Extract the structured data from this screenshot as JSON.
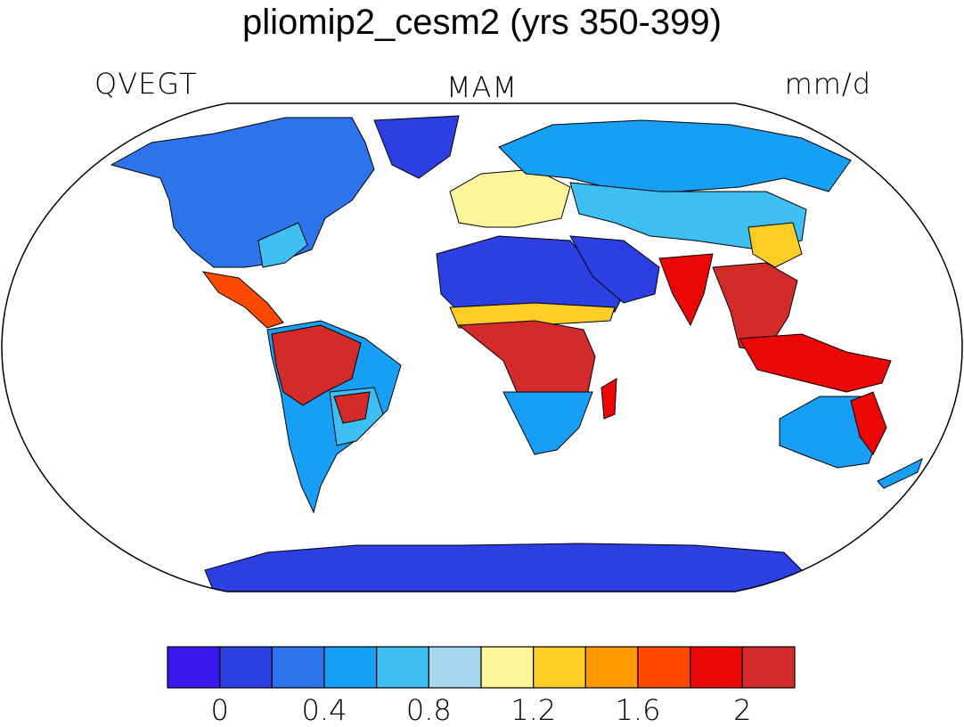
{
  "title": "pliomip2_cesm2 (yrs 350-399)",
  "variable": "QVEGT",
  "season": "MAM",
  "units": "mm/d",
  "projection": "Robinson",
  "colorbar": {
    "colors": [
      "#3a16f0",
      "#2c3fe3",
      "#2d73eb",
      "#179ff6",
      "#3dbff4",
      "#a8d8f0",
      "#fdf69a",
      "#fecd25",
      "#fe9900",
      "#fe4a00",
      "#ea0706",
      "#d32a2a"
    ],
    "tick_labels": [
      "0",
      "0.4",
      "0.8",
      "1.2",
      "1.6",
      "2"
    ],
    "tick_values": [
      0,
      0.4,
      0.8,
      1.2,
      1.6,
      2.0
    ],
    "levels": [
      0,
      0.2,
      0.4,
      0.6,
      0.8,
      1.0,
      1.2,
      1.4,
      1.6,
      1.8,
      2.0
    ]
  },
  "regions": [
    {
      "name": "North America",
      "level": 2
    },
    {
      "name": "Greenland",
      "level": 1
    },
    {
      "name": "Eastern United States",
      "level": 4
    },
    {
      "name": "Central America",
      "level": 9
    },
    {
      "name": "Amazonia",
      "level": 11
    },
    {
      "name": "Eastern South America",
      "level": 4
    },
    {
      "name": "Southern South America",
      "level": 3
    },
    {
      "name": "Europe",
      "level": 6
    },
    {
      "name": "Sahara",
      "level": 1
    },
    {
      "name": "Sahel",
      "level": 7
    },
    {
      "name": "Central Africa",
      "level": 11
    },
    {
      "name": "Southern Africa",
      "level": 3
    },
    {
      "name": "Madagascar",
      "level": 10
    },
    {
      "name": "Arabia",
      "level": 1
    },
    {
      "name": "Northern Asia",
      "level": 3
    },
    {
      "name": "Central Asia",
      "level": 4
    },
    {
      "name": "India",
      "level": 10
    },
    {
      "name": "Southeast Asia",
      "level": 11
    },
    {
      "name": "East China",
      "level": 7
    },
    {
      "name": "Maritime Continent",
      "level": 10
    },
    {
      "name": "Australia",
      "level": 3
    },
    {
      "name": "Eastern Australia",
      "level": 10
    },
    {
      "name": "Antarctica",
      "level": 1
    }
  ]
}
